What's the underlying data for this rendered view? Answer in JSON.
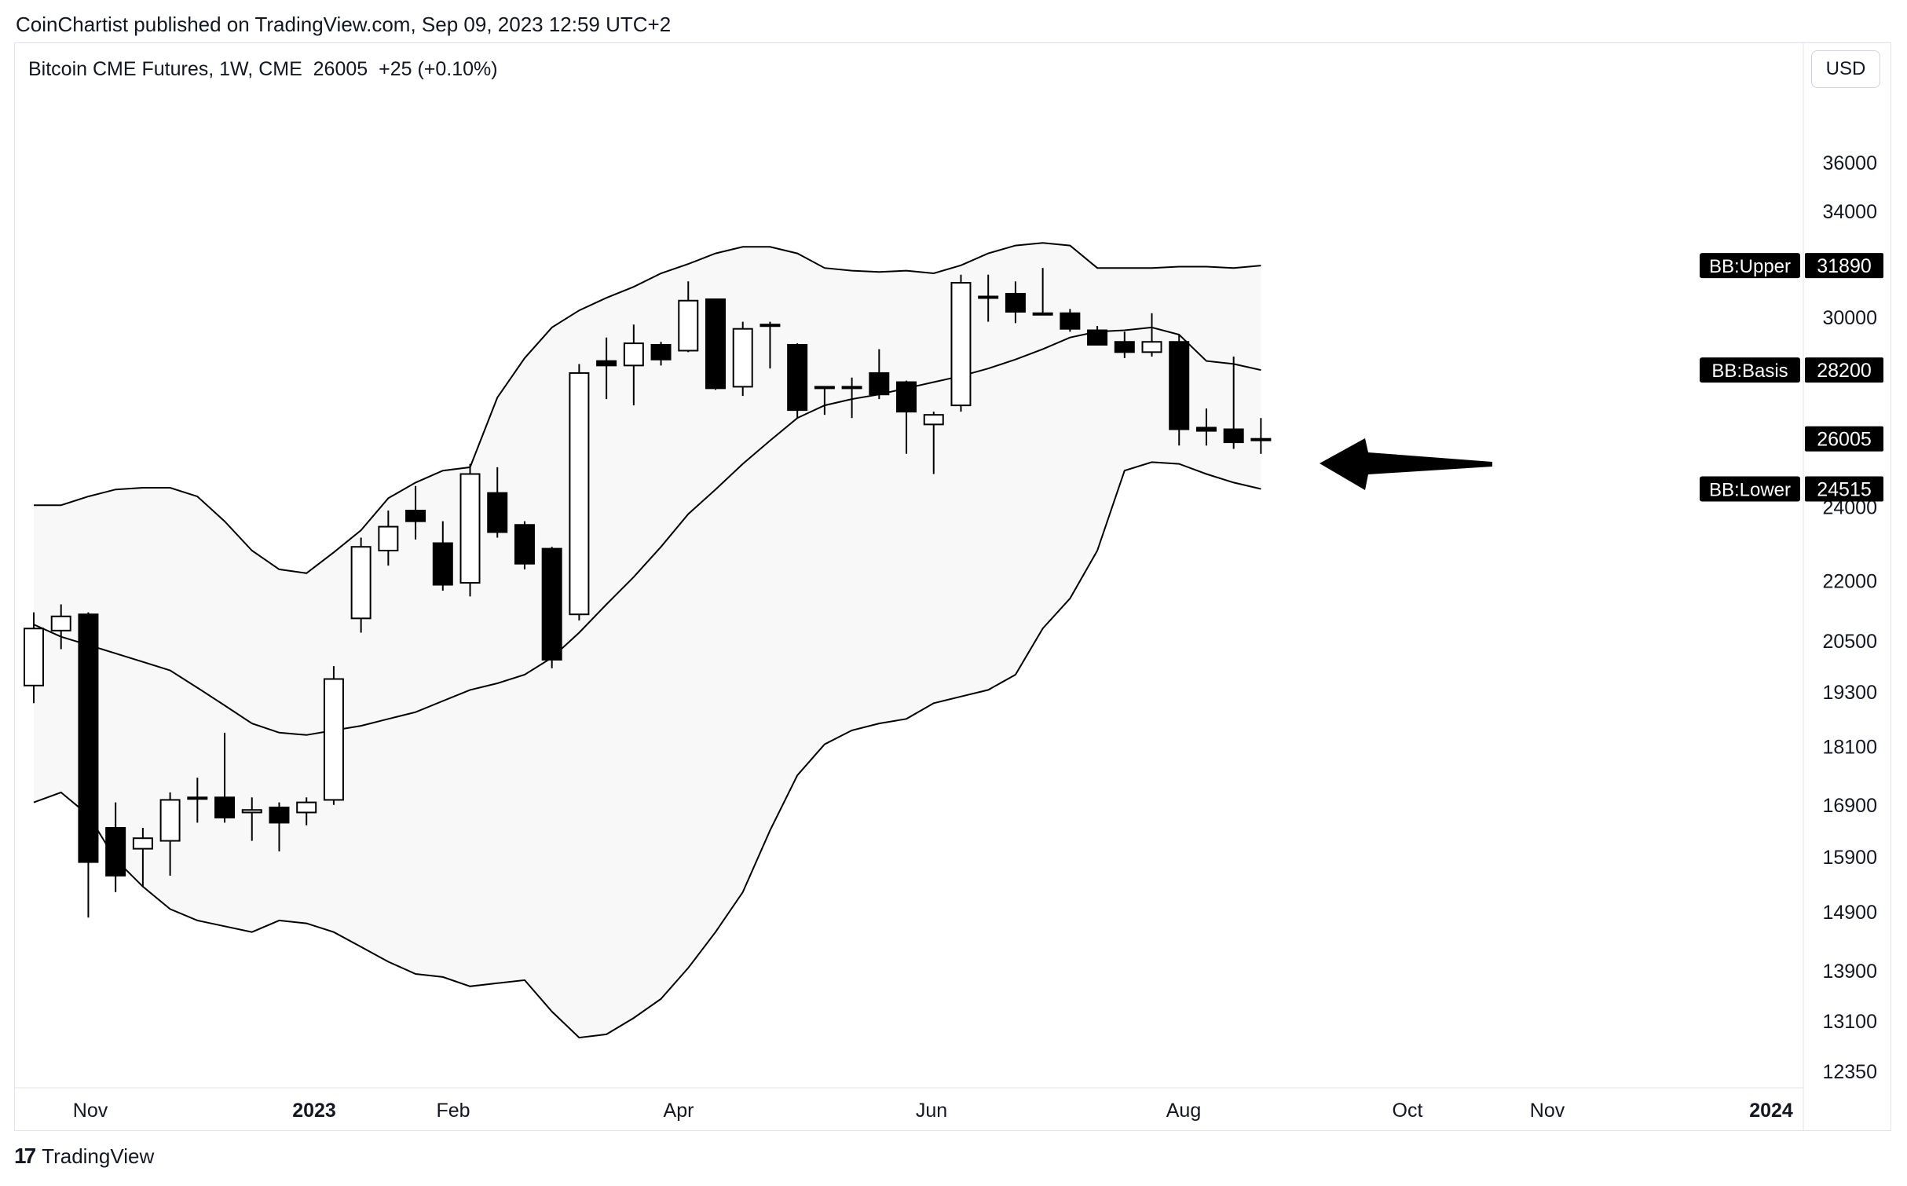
{
  "header": {
    "publisher_line": "CoinChartist published on TradingView.com, Sep 09, 2023 12:59 UTC+2"
  },
  "symbol_line": {
    "instrument": "Bitcoin CME Futures",
    "interval": "1W",
    "exchange": "CME",
    "last": "26005",
    "change": "+25",
    "change_pct": "(+0.10%)"
  },
  "currency_button": "USD",
  "footer": {
    "logo": "17",
    "brand": "TradingView"
  },
  "colors": {
    "band_fill": "#f8f8f8",
    "candle_up": "#ffffff",
    "candle_down": "#000000",
    "line": "#000000",
    "label_bg": "#000000"
  },
  "chart_data": {
    "type": "candlestick",
    "title": "",
    "price_scale": "log",
    "y_ticks": [
      36000,
      34000,
      30000,
      24000,
      22000,
      20500,
      19300,
      18100,
      16900,
      15900,
      14900,
      13900,
      13100,
      12350
    ],
    "x_ticks": [
      {
        "label": "Nov",
        "bold": false
      },
      {
        "label": "2023",
        "bold": true
      },
      {
        "label": "Feb",
        "bold": false
      },
      {
        "label": "Apr",
        "bold": false
      },
      {
        "label": "Jun",
        "bold": false
      },
      {
        "label": "Aug",
        "bold": false
      },
      {
        "label": "Oct",
        "bold": false
      },
      {
        "label": "Nov",
        "bold": false
      },
      {
        "label": "2024",
        "bold": true
      }
    ],
    "candles": [
      {
        "o": 19450,
        "h": 21200,
        "l": 19050,
        "c": 20800
      },
      {
        "o": 20750,
        "h": 21400,
        "l": 20300,
        "c": 21100
      },
      {
        "o": 21150,
        "h": 21200,
        "l": 14800,
        "c": 15800
      },
      {
        "o": 16450,
        "h": 16950,
        "l": 15250,
        "c": 15550
      },
      {
        "o": 16050,
        "h": 16450,
        "l": 15350,
        "c": 16250
      },
      {
        "o": 16200,
        "h": 17150,
        "l": 15550,
        "c": 17000
      },
      {
        "o": 17050,
        "h": 17450,
        "l": 16550,
        "c": 17050
      },
      {
        "o": 17050,
        "h": 18400,
        "l": 16550,
        "c": 16650
      },
      {
        "o": 16750,
        "h": 17050,
        "l": 16200,
        "c": 16800
      },
      {
        "o": 16850,
        "h": 16950,
        "l": 16000,
        "c": 16550
      },
      {
        "o": 16750,
        "h": 17050,
        "l": 16500,
        "c": 16950
      },
      {
        "o": 17000,
        "h": 19900,
        "l": 16900,
        "c": 19600
      },
      {
        "o": 21050,
        "h": 23150,
        "l": 20700,
        "c": 22900
      },
      {
        "o": 22800,
        "h": 23900,
        "l": 22400,
        "c": 23450
      },
      {
        "o": 23900,
        "h": 24600,
        "l": 23100,
        "c": 23600
      },
      {
        "o": 23000,
        "h": 23600,
        "l": 21750,
        "c": 21900
      },
      {
        "o": 21950,
        "h": 25250,
        "l": 21600,
        "c": 24950
      },
      {
        "o": 24400,
        "h": 25150,
        "l": 23150,
        "c": 23300
      },
      {
        "o": 23500,
        "h": 23600,
        "l": 22300,
        "c": 22450
      },
      {
        "o": 22850,
        "h": 22900,
        "l": 19850,
        "c": 20050
      },
      {
        "o": 21150,
        "h": 28400,
        "l": 21000,
        "c": 28100
      },
      {
        "o": 28500,
        "h": 29300,
        "l": 27250,
        "c": 28350
      },
      {
        "o": 28350,
        "h": 29750,
        "l": 27050,
        "c": 29100
      },
      {
        "o": 29050,
        "h": 29150,
        "l": 28350,
        "c": 28550
      },
      {
        "o": 28850,
        "h": 31300,
        "l": 28800,
        "c": 30600
      },
      {
        "o": 30650,
        "h": 30650,
        "l": 27550,
        "c": 27600
      },
      {
        "o": 27650,
        "h": 29850,
        "l": 27350,
        "c": 29600
      },
      {
        "o": 29700,
        "h": 29850,
        "l": 28250,
        "c": 29750
      },
      {
        "o": 29050,
        "h": 29100,
        "l": 26650,
        "c": 26900
      },
      {
        "o": 27650,
        "h": 27650,
        "l": 26750,
        "c": 27650
      },
      {
        "o": 27650,
        "h": 27950,
        "l": 26650,
        "c": 27600
      },
      {
        "o": 28100,
        "h": 28900,
        "l": 27250,
        "c": 27400
      },
      {
        "o": 27800,
        "h": 27850,
        "l": 25550,
        "c": 26850
      },
      {
        "o": 26450,
        "h": 26850,
        "l": 24950,
        "c": 26750
      },
      {
        "o": 27050,
        "h": 31550,
        "l": 26850,
        "c": 31250
      },
      {
        "o": 30750,
        "h": 31550,
        "l": 29850,
        "c": 30750
      },
      {
        "o": 30850,
        "h": 31300,
        "l": 29800,
        "c": 30200
      },
      {
        "o": 30150,
        "h": 31800,
        "l": 30150,
        "c": 30100
      },
      {
        "o": 30150,
        "h": 30300,
        "l": 29500,
        "c": 29600
      },
      {
        "o": 29550,
        "h": 29700,
        "l": 29150,
        "c": 29050
      },
      {
        "o": 29150,
        "h": 29500,
        "l": 28600,
        "c": 28800
      },
      {
        "o": 28800,
        "h": 30150,
        "l": 28650,
        "c": 29150
      },
      {
        "o": 29150,
        "h": 29400,
        "l": 25800,
        "c": 26300
      },
      {
        "o": 26350,
        "h": 26950,
        "l": 25800,
        "c": 26250
      },
      {
        "o": 26300,
        "h": 28650,
        "l": 25700,
        "c": 25900
      },
      {
        "o": 25980,
        "h": 26650,
        "l": 25550,
        "c": 26005
      }
    ],
    "bb_upper": [
      24050,
      24050,
      24300,
      24500,
      24550,
      24550,
      24300,
      23600,
      22800,
      22300,
      22200,
      22750,
      23350,
      24250,
      24700,
      25050,
      25150,
      27300,
      28600,
      29650,
      30250,
      30700,
      31100,
      31600,
      31950,
      32350,
      32600,
      32600,
      32350,
      31800,
      31700,
      31650,
      31700,
      31600,
      31900,
      32350,
      32650,
      32750,
      32650,
      31800,
      31800,
      31800,
      31850,
      31850,
      31800,
      31890
    ],
    "bb_basis": [
      20900,
      20600,
      20400,
      20200,
      20000,
      19800,
      19400,
      19000,
      18600,
      18400,
      18350,
      18450,
      18550,
      18700,
      18850,
      19100,
      19350,
      19500,
      19700,
      20100,
      20700,
      21400,
      22100,
      22900,
      23800,
      24500,
      25250,
      25950,
      26650,
      27050,
      27250,
      27400,
      27600,
      27800,
      28000,
      28250,
      28550,
      28900,
      29300,
      29500,
      29550,
      29650,
      29400,
      28500,
      28400,
      28200
    ],
    "bb_lower": [
      16950,
      17150,
      16700,
      15850,
      15350,
      14950,
      14750,
      14650,
      14550,
      14750,
      14700,
      14550,
      14300,
      14050,
      13850,
      13800,
      13650,
      13700,
      13750,
      13250,
      12850,
      12900,
      13150,
      13450,
      13950,
      14550,
      15250,
      16400,
      17500,
      18150,
      18450,
      18600,
      18700,
      19050,
      19200,
      19350,
      19700,
      20800,
      21550,
      22800,
      25050,
      25300,
      25250,
      24950,
      24700,
      24515
    ],
    "indicator_labels": [
      {
        "name": "BB:Upper",
        "value": "31890"
      },
      {
        "name": "BB:Basis",
        "value": "28200"
      },
      {
        "name": "BB:Lower",
        "value": "24515"
      }
    ],
    "last_price_label": "26005",
    "annotation": "arrow pointing left at latest candle"
  }
}
